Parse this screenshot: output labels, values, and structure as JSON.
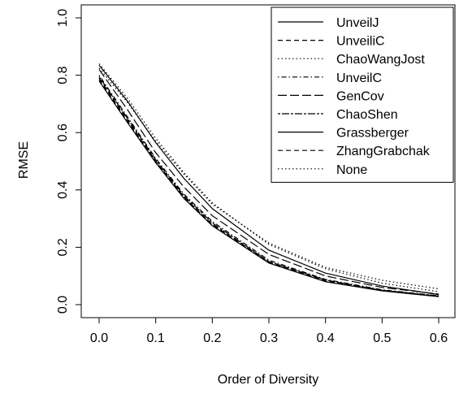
{
  "chart_data": {
    "type": "line",
    "title": "",
    "xlabel": "Order of Diversity",
    "ylabel": "RMSE",
    "xlim": [
      0,
      0.6
    ],
    "ylim": [
      0,
      1.0
    ],
    "x_ticks": [
      "0.0",
      "0.1",
      "0.2",
      "0.3",
      "0.4",
      "0.5",
      "0.6"
    ],
    "y_ticks": [
      "0.0",
      "0.2",
      "0.4",
      "0.6",
      "0.8",
      "1.0"
    ],
    "grid": false,
    "legend_position": "top-right",
    "x": [
      0,
      0.05,
      0.1,
      0.15,
      0.2,
      0.3,
      0.4,
      0.5,
      0.6
    ],
    "series": [
      {
        "name": "UnveilJ",
        "dash": "solid",
        "values": [
          0.835,
          0.71,
          0.565,
          0.44,
          0.335,
          0.19,
          0.11,
          0.065,
          0.035
        ]
      },
      {
        "name": "UnveiliC",
        "dash": "dashed",
        "values": [
          0.79,
          0.645,
          0.5,
          0.375,
          0.28,
          0.15,
          0.085,
          0.05,
          0.03
        ]
      },
      {
        "name": "ChaoWangJost",
        "dash": "dotted",
        "values": [
          0.84,
          0.72,
          0.58,
          0.46,
          0.355,
          0.21,
          0.125,
          0.075,
          0.045
        ]
      },
      {
        "name": "UnveilC",
        "dash": "dotdash",
        "values": [
          0.8,
          0.655,
          0.51,
          0.385,
          0.29,
          0.155,
          0.088,
          0.052,
          0.031
        ]
      },
      {
        "name": "GenCov",
        "dash": "longdash",
        "values": [
          0.82,
          0.68,
          0.53,
          0.41,
          0.31,
          0.175,
          0.1,
          0.06,
          0.037
        ]
      },
      {
        "name": "ChaoShen",
        "dash": "twodash",
        "values": [
          0.795,
          0.65,
          0.505,
          0.38,
          0.285,
          0.15,
          0.086,
          0.05,
          0.03
        ]
      },
      {
        "name": "Grassberger",
        "dash": "solid",
        "values": [
          0.78,
          0.635,
          0.495,
          0.37,
          0.275,
          0.145,
          0.08,
          0.048,
          0.028
        ]
      },
      {
        "name": "ZhangGrabchak",
        "dash": "dashed",
        "values": [
          0.785,
          0.64,
          0.5,
          0.375,
          0.278,
          0.147,
          0.082,
          0.049,
          0.029
        ]
      },
      {
        "name": "None",
        "dash": "dotted",
        "values": [
          0.825,
          0.705,
          0.57,
          0.455,
          0.35,
          0.215,
          0.13,
          0.085,
          0.055
        ]
      }
    ]
  },
  "colors": {
    "line": "#000000",
    "background": "#ffffff"
  }
}
